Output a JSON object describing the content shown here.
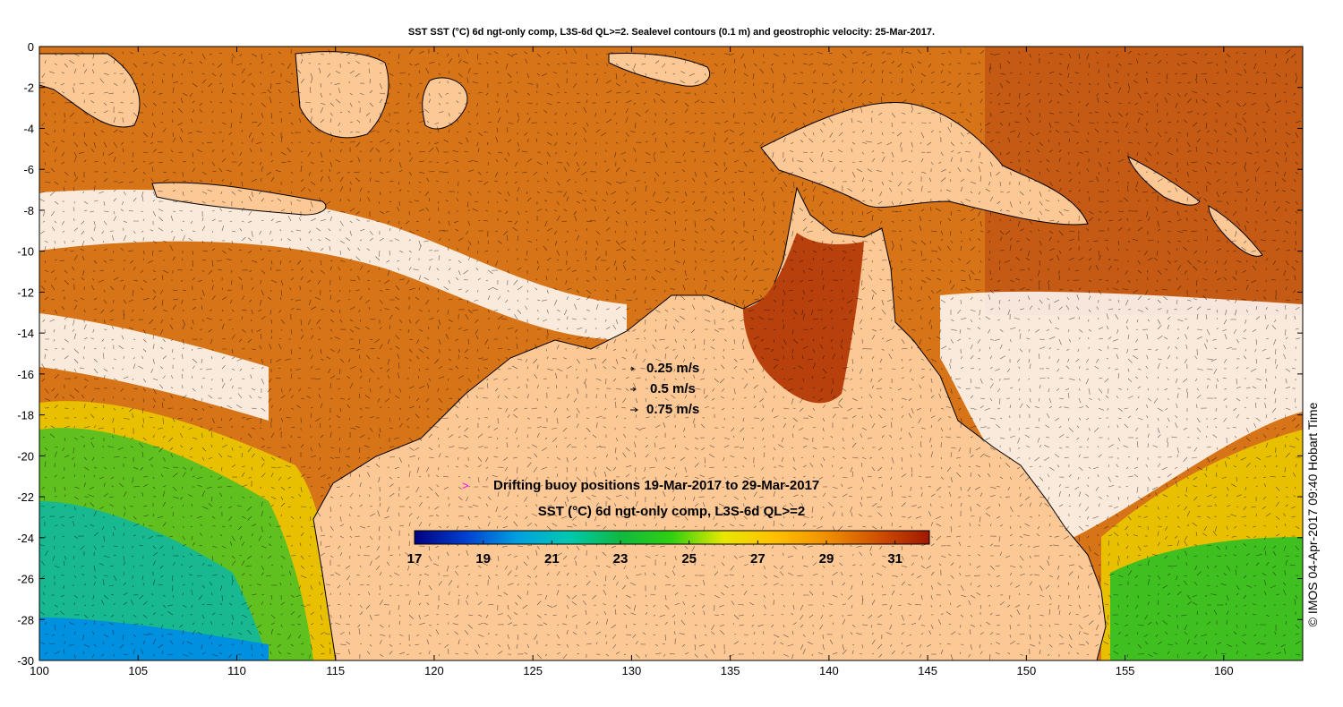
{
  "title": "SST SST (°C) 6d ngt-only comp, L3S-6d QL>=2. Sealevel contours (0.1 m) and geostrophic velocity: 25-Mar-2017.",
  "axes": {
    "x_ticks": [
      "100",
      "105",
      "110",
      "115",
      "120",
      "125",
      "130",
      "135",
      "140",
      "145",
      "150",
      "155",
      "160"
    ],
    "y_ticks": [
      "0",
      "-2",
      "-4",
      "-6",
      "-8",
      "-10",
      "-12",
      "-14",
      "-16",
      "-18",
      "-20",
      "-22",
      "-24",
      "-26",
      "-28",
      "-30"
    ],
    "lon_range": [
      100,
      164
    ],
    "lat_range": [
      -30,
      0
    ]
  },
  "velocity_legend": [
    {
      "label": "0.25 m/s",
      "speed": 0.25
    },
    {
      "label": "0.5 m/s",
      "speed": 0.5
    },
    {
      "label": "0.75 m/s",
      "speed": 0.75
    }
  ],
  "buoy_legend": {
    "symbol": ">",
    "label": "Drifting buoy positions 19-Mar-2017 to 29-Mar-2017",
    "color": "#ff00ff"
  },
  "colorbar": {
    "title": "SST (°C) 6d ngt-only comp, L3S-6d QL>=2",
    "ticks": [
      "17",
      "19",
      "21",
      "23",
      "25",
      "27",
      "29",
      "31"
    ],
    "range": [
      17,
      32
    ],
    "colors": [
      "#000080",
      "#0040d0",
      "#00a0e0",
      "#00c8b0",
      "#10b840",
      "#30d010",
      "#e8e800",
      "#ffc000",
      "#f09000",
      "#d05000",
      "#a01800"
    ]
  },
  "credit": "© IMOS 04-Apr-2017 09:40 Hobart Time",
  "colors": {
    "land": "#fcc896",
    "cloud": "#ffffff",
    "warm_sst": "#d87418",
    "hot_sst": "#b8400c"
  }
}
